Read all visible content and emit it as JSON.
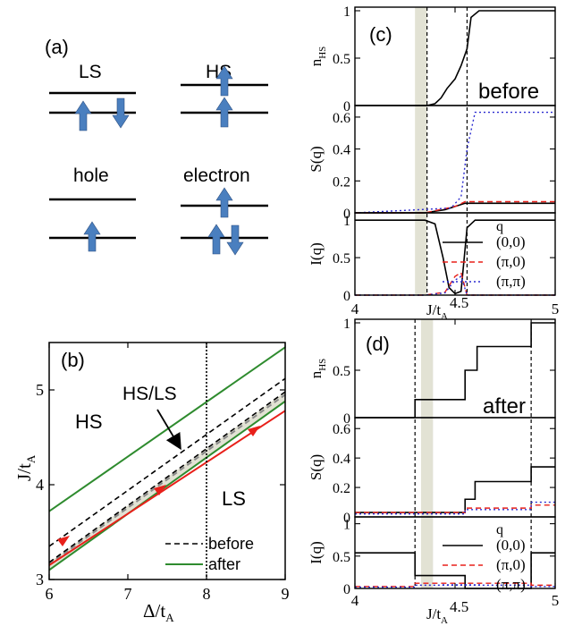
{
  "figure": {
    "panel_a": {
      "tag": "(a)",
      "states": [
        {
          "key": "LS",
          "label": "LS"
        },
        {
          "key": "HS",
          "label": "HS"
        },
        {
          "key": "hole",
          "label": "hole"
        },
        {
          "key": "electron",
          "label": "electron"
        }
      ],
      "arrow_color": "#4a7fbf"
    },
    "panel_b": {
      "tag": "(b)",
      "region_labels": {
        "hs": "HS",
        "ls": "LS",
        "hsls": "HS/LS"
      },
      "xlabel": "Δ/t",
      "xlabel_sub": "A",
      "ylabel": "J/t",
      "ylabel_sub": "A",
      "xticks": [
        "6",
        "7",
        "8",
        "9"
      ],
      "yticks": [
        "3",
        "4",
        "5"
      ],
      "legend": [
        {
          "label": "before",
          "color": "#000000",
          "style": "dashed"
        },
        {
          "label": "after",
          "color": "#2e8b2e",
          "style": "solid"
        }
      ],
      "colors": {
        "green": "#2e8b2e",
        "red": "#e8201a",
        "shade": "#e2e2d4",
        "gray": "#8a8a8a"
      }
    },
    "panel_c": {
      "tag": "(c)",
      "annotation": "before"
    },
    "panel_d": {
      "tag": "(d)",
      "annotation": "after"
    },
    "right_axes": {
      "ylabels": {
        "nhs": "n",
        "nhs_sub": "HS",
        "s": "S(q)",
        "i": "I(q)"
      },
      "nhs_ticks": [
        "1",
        "0.5",
        "0"
      ],
      "s_ticks": [
        "0.6",
        "0.4",
        "0.2",
        "0"
      ],
      "i_ticks": [
        "1",
        "0.5",
        "0"
      ],
      "x_ticks": [
        "4",
        "4.5",
        "5"
      ],
      "xlabel": "J/t",
      "xlabel_sub": "A",
      "legend_title": "q",
      "legend": [
        {
          "label": "(0,0)",
          "color": "#000000",
          "style": "solid"
        },
        {
          "label": "(π,0)",
          "color": "#e8201a",
          "style": "dashed"
        },
        {
          "label": "(π,π)",
          "color": "#2a2ad0",
          "style": "dotted"
        }
      ]
    }
  },
  "chart_data": [
    {
      "type": "line",
      "panel": "(b)",
      "xlabel": "Δ/tA",
      "ylabel": "J/tA",
      "xlim": [
        6,
        9
      ],
      "ylim": [
        3,
        5.5
      ],
      "series": [
        {
          "name": "before",
          "x": [
            6,
            9
          ],
          "y": [
            3.35,
            5.12
          ]
        },
        {
          "name": "before",
          "x": [
            6,
            9
          ],
          "y": [
            3.18,
            4.98
          ]
        },
        {
          "name": "after",
          "x": [
            6,
            9
          ],
          "y": [
            3.72,
            5.45
          ]
        },
        {
          "name": "after",
          "x": [
            6,
            9
          ],
          "y": [
            3.1,
            4.88
          ]
        },
        {
          "x": [
            6,
            9
          ],
          "y": [
            3.15,
            4.78
          ]
        }
      ],
      "vline_x": 8
    },
    {
      "type": "line",
      "panel": "(c)",
      "xlim": [
        4,
        5
      ],
      "subplots": [
        {
          "ylabel": "nHS",
          "ylim": [
            0,
            1
          ],
          "series": [
            {
              "name": "(0,0)",
              "x": [
                4,
                4.36,
                4.4,
                4.43,
                4.46,
                4.5,
                4.53,
                4.56,
                4.58,
                4.62,
                5
              ],
              "y": [
                0,
                0,
                0.02,
                0.08,
                0.18,
                0.28,
                0.42,
                0.6,
                0.93,
                1,
                1
              ]
            }
          ]
        },
        {
          "ylabel": "S(q)",
          "ylim": [
            0,
            0.65
          ],
          "series": [
            {
              "name": "(0,0)",
              "x": [
                4,
                4.35,
                4.45,
                4.55,
                5
              ],
              "y": [
                0,
                0,
                0.02,
                0.06,
                0.06
              ]
            },
            {
              "name": "(π,0)",
              "x": [
                4,
                4.35,
                4.5,
                4.55,
                5
              ],
              "y": [
                0,
                0,
                0.04,
                0.07,
                0.07
              ]
            },
            {
              "name": "(π,π)",
              "x": [
                4,
                4.48,
                4.53,
                4.56,
                4.6,
                5
              ],
              "y": [
                0,
                0.03,
                0.1,
                0.4,
                0.63,
                0.63
              ]
            }
          ]
        },
        {
          "ylabel": "I(q)",
          "ylim": [
            0,
            1
          ],
          "series": [
            {
              "name": "(0,0)",
              "x": [
                4,
                4.35,
                4.4,
                4.44,
                4.47,
                4.5,
                4.53,
                4.56,
                4.6,
                5
              ],
              "y": [
                1,
                1,
                0.95,
                0.5,
                0.1,
                0.02,
                0.05,
                0.9,
                1,
                1
              ]
            },
            {
              "name": "(π,0)",
              "x": [
                4,
                4.35,
                4.45,
                4.5,
                4.53,
                4.56,
                5
              ],
              "y": [
                0,
                0,
                0.04,
                0.25,
                0.3,
                0,
                0
              ]
            },
            {
              "name": "(π,π)",
              "x": [
                4,
                4.35,
                4.45,
                4.5,
                4.53,
                4.56,
                5
              ],
              "y": [
                0,
                0,
                0.03,
                0.2,
                0.25,
                0,
                0
              ]
            }
          ]
        }
      ]
    },
    {
      "type": "line",
      "panel": "(d)",
      "xlim": [
        4,
        5
      ],
      "subplots": [
        {
          "ylabel": "nHS",
          "ylim": [
            0,
            1
          ],
          "series": [
            {
              "name": "(0,0)",
              "x": [
                4,
                4.3,
                4.3,
                4.55,
                4.55,
                4.61,
                4.61,
                4.88,
                4.88,
                5
              ],
              "y": [
                0,
                0,
                0.19,
                0.19,
                0.5,
                0.5,
                0.75,
                0.75,
                1,
                1
              ]
            }
          ]
        },
        {
          "ylabel": "S(q)",
          "ylim": [
            0,
            0.65
          ],
          "series": [
            {
              "name": "(0,0)",
              "x": [
                4,
                4.55,
                4.55,
                4.6,
                4.6,
                4.88,
                4.88,
                5
              ],
              "y": [
                0.03,
                0.03,
                0.12,
                0.12,
                0.24,
                0.24,
                0.34,
                0.34
              ]
            },
            {
              "name": "(π,0)",
              "x": [
                4,
                4.55,
                4.55,
                4.88,
                4.88,
                5
              ],
              "y": [
                0.03,
                0.03,
                0.06,
                0.06,
                0.08,
                0.08
              ]
            },
            {
              "name": "(π,π)",
              "x": [
                4,
                4.55,
                4.55,
                4.88,
                4.88,
                5
              ],
              "y": [
                0.02,
                0.02,
                0.05,
                0.05,
                0.1,
                0.1
              ]
            }
          ]
        },
        {
          "ylabel": "I(q)",
          "ylim": [
            0,
            1
          ],
          "series": [
            {
              "name": "(0,0)",
              "x": [
                4,
                4.3,
                4.3,
                4.55,
                4.55,
                4.88,
                4.88,
                5
              ],
              "y": [
                0.55,
                0.55,
                0.2,
                0.2,
                0,
                0,
                0.55,
                0.55
              ]
            },
            {
              "name": "(π,0)",
              "x": [
                4,
                4.3,
                4.3,
                4.88,
                4.88,
                5
              ],
              "y": [
                0.03,
                0.03,
                0.08,
                0.08,
                0.05,
                0.05
              ]
            },
            {
              "name": "(π,π)",
              "x": [
                4,
                4.3,
                4.3,
                4.88,
                4.88,
                5
              ],
              "y": [
                0.02,
                0.02,
                0.05,
                0.05,
                0.03,
                0.03
              ]
            }
          ]
        }
      ]
    }
  ]
}
